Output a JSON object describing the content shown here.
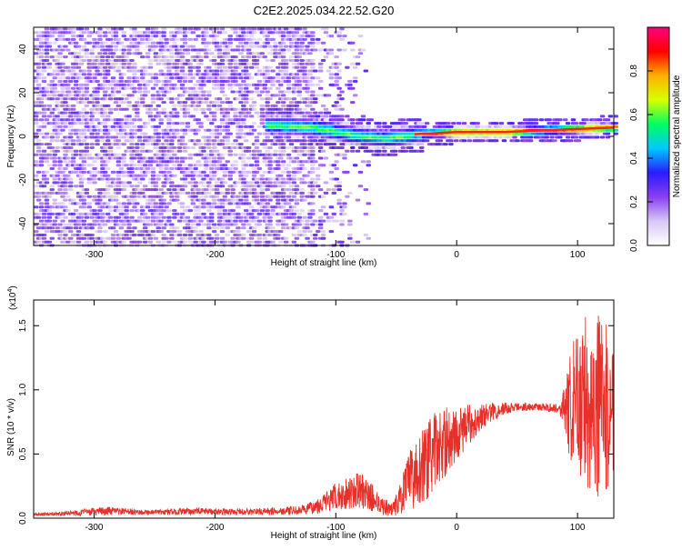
{
  "figure": {
    "title": "C2E2.2025.034.22.52.G20"
  },
  "chart_data": [
    {
      "type": "heatmap",
      "xlabel": "Height of straight line (km)",
      "ylabel": "Frequency (Hz)",
      "xlim": [
        -350,
        130
      ],
      "ylim": [
        -50,
        50
      ],
      "xticks": [
        -300,
        -200,
        -100,
        0,
        100
      ],
      "yticks": [
        -40,
        -20,
        0,
        20,
        40
      ],
      "colorbar": {
        "label": "Normalized spectral amplitude",
        "range": [
          0.0,
          1.0
        ],
        "ticks": [
          0.0,
          0.2,
          0.4,
          0.6,
          0.8
        ],
        "tick_labels": [
          "0.0",
          "0.2",
          "0.4",
          "0.6",
          "0.8"
        ],
        "colors": [
          "#ffffff",
          "#d8c8f4",
          "#8a3ff0",
          "#2a1bff",
          "#00c8ff",
          "#00ff60",
          "#d8ff00",
          "#ffb000",
          "#ff0000",
          "#ff0080"
        ]
      },
      "ridge": [
        {
          "x": -150,
          "y": 5
        },
        {
          "x": -120,
          "y": 4
        },
        {
          "x": -100,
          "y": 2
        },
        {
          "x": -80,
          "y": 0
        },
        {
          "x": -60,
          "y": -1
        },
        {
          "x": -45,
          "y": 0
        },
        {
          "x": -35,
          "y": 1
        },
        {
          "x": 0,
          "y": 2
        },
        {
          "x": 40,
          "y": 2
        },
        {
          "x": 80,
          "y": 3
        },
        {
          "x": 130,
          "y": 4
        }
      ],
      "grid": false
    },
    {
      "type": "line",
      "xlabel": "Height of straight line (km)",
      "ylabel": "SNR (10 * v/v)",
      "y_exponent_label": "(x10",
      "y_exponent_power": "4",
      "y_exponent_close": ")",
      "xlim": [
        -350,
        130
      ],
      "ylim": [
        0,
        17000
      ],
      "xticks": [
        -300,
        -200,
        -100,
        0,
        100
      ],
      "yticks": [
        0,
        5000,
        10000,
        15000
      ],
      "ytick_labels": [
        "0.0",
        "0.5",
        "1.0",
        "1.5"
      ],
      "grid": false,
      "series": [
        {
          "color": "#e8302a",
          "x": [
            -350,
            -330,
            -310,
            -290,
            -270,
            -250,
            -230,
            -210,
            -190,
            -170,
            -150,
            -130,
            -120,
            -110,
            -100,
            -90,
            -80,
            -70,
            -60,
            -55,
            -50,
            -45,
            -40,
            -35,
            -30,
            -25,
            -20,
            -15,
            -10,
            -5,
            0,
            10,
            20,
            30,
            40,
            50,
            60,
            70,
            80,
            85,
            90,
            95,
            100,
            105,
            110,
            115,
            120,
            125,
            130
          ],
          "values": [
            300,
            350,
            450,
            550,
            500,
            450,
            500,
            550,
            500,
            500,
            550,
            600,
            800,
            1200,
            1600,
            2000,
            2200,
            1600,
            900,
            700,
            1000,
            1800,
            2800,
            3400,
            3900,
            4400,
            5000,
            5500,
            5900,
            6200,
            6500,
            7300,
            7900,
            8300,
            8550,
            8650,
            8700,
            8650,
            8600,
            8550,
            8500,
            8500,
            8800,
            9400,
            9000,
            8900,
            8700,
            8400,
            8300
          ],
          "envelope": [
            100,
            150,
            250,
            350,
            250,
            200,
            250,
            250,
            250,
            250,
            300,
            350,
            500,
            800,
            1100,
            1300,
            1400,
            1100,
            700,
            500,
            900,
            1500,
            2200,
            2600,
            2800,
            3000,
            3100,
            3000,
            2800,
            2300,
            2000,
            1600,
            1000,
            700,
            500,
            350,
            300,
            300,
            350,
            400,
            2000,
            5000,
            6000,
            6500,
            7000,
            7500,
            7000,
            6500,
            5500
          ]
        }
      ]
    }
  ]
}
